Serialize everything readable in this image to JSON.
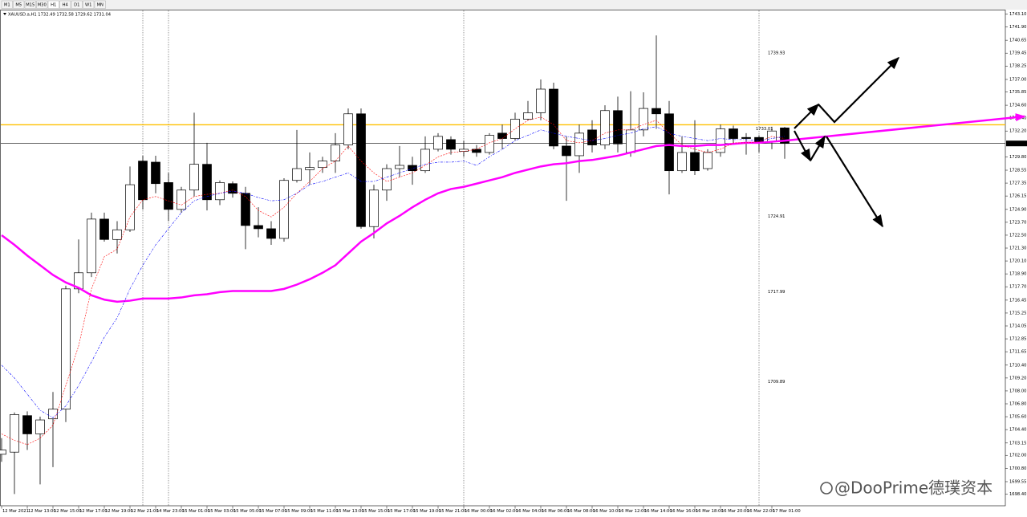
{
  "toolbar": [
    "M1",
    "M5",
    "M15",
    "M30",
    "H1",
    "H4",
    "D1",
    "W1",
    "MN"
  ],
  "watermark": "@DooPrime德璞资本",
  "chart_data": {
    "type": "candlestick",
    "title": "XAUUSD.a,H1  1732.49 1732.58 1729.62 1731.04",
    "categories": [
      "12 Mar 2021",
      null,
      "12 Mar 13:00",
      null,
      "12 Mar 15:00",
      null,
      "12 Mar 17:00",
      null,
      "12 Mar 19:00",
      null,
      "12 Mar 21:00",
      null,
      "14 Mar 23:00",
      null,
      "15 Mar 01:00",
      null,
      "15 Mar 03:00",
      null,
      "15 Mar 05:00",
      null,
      "15 Mar 07:00",
      null,
      "15 Mar 09:00",
      null,
      "15 Mar 11:00",
      null,
      "15 Mar 13:00",
      null,
      "15 Mar 15:00",
      null,
      "15 Mar 17:00",
      null,
      "15 Mar 19:00",
      null,
      "15 Mar 21:00",
      null,
      "16 Mar 00:00",
      null,
      "16 Mar 02:00",
      null,
      "16 Mar 04:00",
      null,
      "16 Mar 06:00",
      null,
      "16 Mar 08:00",
      null,
      "16 Mar 10:00",
      null,
      "16 Mar 12:00",
      null,
      "16 Mar 14:00",
      null,
      "16 Mar 16:00",
      null,
      "16 Mar 18:00",
      null,
      "16 Mar 20:00",
      null,
      "16 Mar 22:00",
      null,
      "17 Mar 01:00",
      null
    ],
    "open": [
      1702.1,
      1702.3,
      1705.7,
      1704.0,
      1705.4,
      1706.3,
      1717.5,
      1719.0,
      1724.0,
      1722.1,
      1723.0,
      1729.4,
      1729.3,
      1727.4,
      1724.9,
      1726.7,
      1729.1,
      1725.8,
      1727.3,
      1726.4,
      1723.4,
      1723.1,
      1722.2,
      1727.6,
      1728.6,
      1728.8,
      1729.4,
      1730.9,
      1733.8,
      1723.3,
      1726.7,
      1728.7,
      1729.0,
      1728.5,
      1730.5,
      1731.4,
      1730.3,
      1730.5,
      1730.2,
      1732.0,
      1731.5,
      1733.3,
      1733.9,
      1736.1,
      1730.8,
      1729.9,
      1732.3,
      1730.9,
      1734.1,
      1730.2,
      1732.3,
      1734.3,
      1733.8,
      1728.5,
      1730.2,
      1728.7,
      1730.2,
      1732.4,
      1731.6,
      1731.6,
      1731.2,
      1732.49
    ],
    "high": [
      1703.6,
      1706.0,
      1706.1,
      1705.6,
      1707.9,
      1717.8,
      1722.1,
      1724.6,
      1724.6,
      1723.8,
      1728.9,
      1729.9,
      1729.9,
      1728.3,
      1727.0,
      1733.9,
      1731.1,
      1727.6,
      1727.5,
      1727.0,
      1725.1,
      1723.8,
      1727.8,
      1732.3,
      1730.2,
      1729.8,
      1732.0,
      1734.3,
      1734.3,
      1727.2,
      1729.1,
      1730.8,
      1729.8,
      1731.7,
      1732.0,
      1731.7,
      1731.3,
      1730.9,
      1732.0,
      1732.8,
      1733.9,
      1735.0,
      1737.0,
      1736.7,
      1731.7,
      1732.8,
      1733.2,
      1734.6,
      1735.4,
      1735.9,
      1735.8,
      1741.1,
      1735.0,
      1731.7,
      1733.2,
      1730.5,
      1732.8,
      1732.7,
      1732.0,
      1731.8,
      1732.6,
      1732.58
    ],
    "low": [
      1701.4,
      1698.4,
      1702.5,
      1699.3,
      1700.9,
      1705.1,
      1717.1,
      1718.6,
      1721.9,
      1720.8,
      1722.8,
      1724.9,
      1726.4,
      1723.8,
      1724.6,
      1726.1,
      1724.8,
      1725.3,
      1726.0,
      1721.2,
      1722.3,
      1721.6,
      1721.9,
      1727.4,
      1727.2,
      1728.3,
      1728.3,
      1730.5,
      1723.1,
      1722.2,
      1725.7,
      1727.9,
      1727.2,
      1728.3,
      1730.3,
      1730.0,
      1729.8,
      1729.8,
      1730.0,
      1730.5,
      1731.3,
      1733.2,
      1733.2,
      1730.5,
      1725.7,
      1728.3,
      1730.2,
      1730.5,
      1730.2,
      1729.8,
      1731.7,
      1732.4,
      1726.3,
      1728.3,
      1728.1,
      1728.5,
      1729.8,
      1731.1,
      1730.0,
      1730.2,
      1730.5,
      1729.62
    ],
    "close": [
      1702.5,
      1705.8,
      1704.0,
      1705.3,
      1706.3,
      1717.5,
      1719.0,
      1724.0,
      1722.1,
      1723.0,
      1727.2,
      1725.8,
      1727.3,
      1724.9,
      1726.7,
      1729.1,
      1725.8,
      1727.4,
      1726.4,
      1723.4,
      1723.1,
      1722.2,
      1727.6,
      1728.7,
      1728.8,
      1729.4,
      1730.9,
      1733.8,
      1723.3,
      1726.7,
      1728.7,
      1729.0,
      1728.5,
      1730.5,
      1731.7,
      1730.5,
      1730.5,
      1730.2,
      1731.8,
      1731.5,
      1733.3,
      1733.9,
      1736.1,
      1730.8,
      1729.9,
      1732.0,
      1730.9,
      1734.1,
      1731.0,
      1732.3,
      1734.3,
      1733.8,
      1728.5,
      1730.2,
      1728.5,
      1730.2,
      1732.4,
      1731.5,
      1731.5,
      1731.2,
      1732.2,
      1731.04
    ],
    "series": [
      {
        "color": "#ff00ff",
        "width": 2.5,
        "dash": "",
        "values": [
          1722.5,
          1721.6,
          1720.6,
          1719.7,
          1718.8,
          1718.1,
          1717.6,
          1716.9,
          1716.5,
          1716.3,
          1716.4,
          1716.6,
          1716.6,
          1716.6,
          1716.7,
          1716.9,
          1717.0,
          1717.2,
          1717.3,
          1717.3,
          1717.3,
          1717.3,
          1717.5,
          1717.9,
          1718.4,
          1719.0,
          1719.7,
          1720.8,
          1721.9,
          1722.7,
          1723.6,
          1724.3,
          1725.1,
          1725.8,
          1726.4,
          1726.8,
          1727.0,
          1727.3,
          1727.6,
          1727.9,
          1728.3,
          1728.6,
          1728.9,
          1729.1,
          1729.2,
          1729.4,
          1729.5,
          1729.7,
          1729.9,
          1730.2,
          1730.5,
          1730.8,
          1730.9,
          1730.8,
          1730.8,
          1730.9,
          1730.9,
          1731.0,
          1731.1,
          1731.1,
          1731.2,
          1731.3
        ]
      },
      {
        "color": "#ff0000",
        "width": 0.6,
        "dash": "2,1.5",
        "values": [
          1704.0,
          1703.4,
          1703.0,
          1703.6,
          1704.8,
          1708.5,
          1712.2,
          1717.5,
          1720.5,
          1721.2,
          1724.2,
          1725.8,
          1726.1,
          1725.7,
          1725.3,
          1726.1,
          1726.3,
          1726.4,
          1726.7,
          1726.1,
          1724.8,
          1724.2,
          1725.1,
          1726.4,
          1727.5,
          1728.7,
          1729.4,
          1730.8,
          1729.4,
          1728.3,
          1727.5,
          1727.9,
          1728.3,
          1729.0,
          1729.8,
          1730.2,
          1730.3,
          1730.5,
          1731.1,
          1731.5,
          1732.4,
          1733.2,
          1733.5,
          1732.8,
          1731.3,
          1731.1,
          1731.3,
          1732.0,
          1732.3,
          1732.3,
          1732.8,
          1733.2,
          1732.0,
          1730.9,
          1730.5,
          1730.2,
          1730.5,
          1731.1,
          1731.1,
          1731.2,
          1731.7,
          1731.5
        ]
      },
      {
        "color": "#0000ff",
        "width": 0.6,
        "dash": "3,1.5,1,1.5",
        "values": [
          1710.4,
          1709.2,
          1707.7,
          1706.2,
          1705.5,
          1706.6,
          1708.5,
          1710.7,
          1713.0,
          1714.8,
          1717.5,
          1719.7,
          1721.6,
          1723.1,
          1724.6,
          1725.7,
          1726.1,
          1726.4,
          1726.6,
          1726.4,
          1726.0,
          1725.7,
          1725.8,
          1726.4,
          1727.2,
          1727.5,
          1727.9,
          1728.3,
          1727.5,
          1727.5,
          1727.9,
          1728.3,
          1728.7,
          1729.1,
          1729.3,
          1729.3,
          1729.4,
          1729.0,
          1729.8,
          1730.5,
          1731.3,
          1731.8,
          1732.3,
          1732.0,
          1731.7,
          1731.5,
          1731.3,
          1731.5,
          1731.8,
          1732.0,
          1732.4,
          1732.6,
          1732.0,
          1731.7,
          1731.5,
          1731.3,
          1731.5,
          1731.4,
          1731.4,
          1731.3,
          1731.5,
          1731.7
        ]
      }
    ],
    "bull_color": "#ffffff",
    "bear_color": "#000000",
    "hlines": [
      {
        "value": 1732.78,
        "color": "#ffc000"
      },
      {
        "value": 1731.04,
        "color": "#000000"
      }
    ],
    "annotations": [
      "1739.93",
      "1724.91",
      "1717.99",
      "1709.89",
      "1733.01"
    ],
    "ylim": [
      1697.27,
      1743.5
    ],
    "yticks": [
      {
        "value": 1743.1,
        "label": "1743.10"
      },
      {
        "value": 1741.9,
        "label": "1741.90"
      },
      {
        "value": 1740.65,
        "label": "1740.65"
      },
      {
        "value": 1739.45,
        "label": "1739.45"
      },
      {
        "value": 1738.25,
        "label": "1738.25"
      },
      {
        "value": 1737.0,
        "label": "1737.00"
      },
      {
        "value": 1735.85,
        "label": "1735.85"
      },
      {
        "value": 1734.6,
        "label": "1734.60"
      },
      {
        "value": 1733.4,
        "label": "1733.40"
      },
      {
        "value": 1732.2,
        "label": "1732.20"
      },
      {
        "value": 1729.8,
        "label": "1729.80"
      },
      1728.55,
      1727.35,
      1726.15,
      {
        "value": 1724.9,
        "label": "1724.90"
      },
      {
        "value": 1723.7,
        "label": "1723.70"
      },
      {
        "value": 1722.5,
        "label": "1722.50"
      },
      {
        "value": 1721.3,
        "label": "1721.30"
      },
      {
        "value": 1720.1,
        "label": "1720.10"
      },
      {
        "value": 1718.9,
        "label": "1718.90"
      },
      {
        "value": 1717.7,
        "label": "1717.70"
      },
      1716.45,
      1715.25,
      1714.05,
      1712.85,
      1711.65,
      {
        "value": 1710.4,
        "label": "1710.40"
      },
      {
        "value": 1709.2,
        "label": "1709.20"
      },
      {
        "value": 1708.0,
        "label": "1708.00"
      },
      {
        "value": 1706.8,
        "label": "1706.80"
      },
      {
        "value": 1705.6,
        "label": "1705.60"
      },
      {
        "value": 1704.4,
        "label": "1704.40"
      },
      1703.15,
      {
        "value": 1702.0,
        "label": "1702.00"
      },
      {
        "value": 1700.8,
        "label": "1700.80"
      },
      1699.55,
      {
        "value": 1698.4,
        "label": "1698.40"
      }
    ],
    "grid": false
  }
}
